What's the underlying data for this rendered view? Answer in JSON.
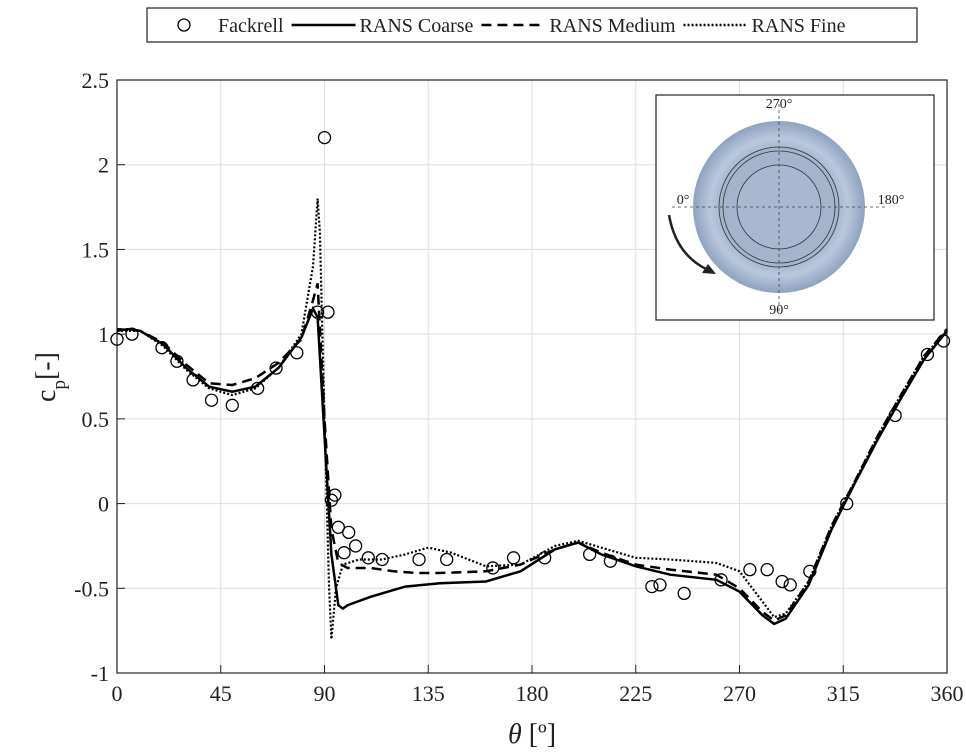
{
  "chart_data": {
    "type": "line",
    "xlabel": {
      "symbol": "θ",
      "unit": "[º]"
    },
    "ylabel": {
      "main": "c",
      "sub": "p",
      "unit": "[-]"
    },
    "xlim": [
      0,
      360
    ],
    "xticks": [
      0,
      45,
      90,
      135,
      180,
      225,
      270,
      315,
      360
    ],
    "ylim": [
      -1,
      2.5
    ],
    "yticks": [
      -1,
      -0.5,
      0,
      0.5,
      1,
      1.5,
      2,
      2.5
    ],
    "grid": true,
    "legend": "top",
    "inset_labels": [
      "270°",
      "0°",
      "180°",
      "90°"
    ],
    "series": [
      {
        "name": "Fackrell",
        "style": "circle",
        "color": "#000000",
        "x": [
          0,
          6.5,
          19.5,
          26,
          33,
          41,
          50,
          61,
          69,
          78,
          87,
          91.5,
          90,
          93,
          94.5,
          96,
          98.5,
          100.5,
          103.5,
          109,
          115,
          131,
          143,
          163,
          172,
          185.5,
          205,
          214,
          232,
          235.5,
          246,
          262,
          274.5,
          282,
          288.5,
          292,
          300.5,
          316.5,
          337.5,
          351.5,
          358.5
        ],
        "values": [
          0.97,
          1.0,
          0.92,
          0.84,
          0.73,
          0.61,
          0.58,
          0.68,
          0.8,
          0.89,
          1.13,
          1.13,
          2.16,
          0.02,
          0.05,
          -0.14,
          -0.29,
          -0.17,
          -0.25,
          -0.32,
          -0.33,
          -0.33,
          -0.33,
          -0.38,
          -0.32,
          -0.32,
          -0.3,
          -0.34,
          -0.49,
          -0.48,
          -0.53,
          -0.45,
          -0.39,
          -0.39,
          -0.46,
          -0.48,
          -0.4,
          0,
          0.52,
          0.88,
          0.96
        ]
      },
      {
        "name": "RANS Coarse",
        "style": "solid",
        "color": "#000000",
        "x": [
          0,
          5,
          10,
          20,
          30,
          40,
          50,
          60,
          70,
          80,
          85,
          87,
          90,
          93,
          96,
          98,
          100,
          110,
          125,
          140,
          160,
          175,
          190,
          200,
          210,
          225,
          240,
          260,
          270,
          280,
          285,
          290,
          300,
          310,
          320,
          330,
          340,
          350,
          360
        ],
        "values": [
          1.02,
          1.03,
          1.02,
          0.94,
          0.8,
          0.69,
          0.66,
          0.69,
          0.8,
          0.98,
          1.15,
          1.1,
          0.4,
          -0.3,
          -0.6,
          -0.62,
          -0.6,
          -0.55,
          -0.49,
          -0.47,
          -0.46,
          -0.4,
          -0.27,
          -0.23,
          -0.3,
          -0.37,
          -0.42,
          -0.45,
          -0.52,
          -0.66,
          -0.71,
          -0.68,
          -0.48,
          -0.15,
          0.12,
          0.38,
          0.62,
          0.85,
          1.02
        ]
      },
      {
        "name": "RANS Medium",
        "style": "dashed",
        "color": "#000000",
        "x": [
          0,
          10,
          20,
          30,
          40,
          50,
          60,
          70,
          80,
          85,
          87,
          90,
          93,
          96,
          100,
          110,
          120,
          130,
          140,
          160,
          175,
          190,
          200,
          210,
          225,
          240,
          260,
          270,
          280,
          285,
          290,
          300,
          310,
          320,
          330,
          340,
          350,
          360
        ],
        "values": [
          1.03,
          1.02,
          0.95,
          0.82,
          0.71,
          0.7,
          0.74,
          0.83,
          0.97,
          1.2,
          1.3,
          0.5,
          -0.15,
          -0.35,
          -0.38,
          -0.38,
          -0.4,
          -0.41,
          -0.41,
          -0.4,
          -0.36,
          -0.27,
          -0.23,
          -0.29,
          -0.36,
          -0.39,
          -0.42,
          -0.5,
          -0.64,
          -0.69,
          -0.66,
          -0.46,
          -0.13,
          0.13,
          0.4,
          0.64,
          0.87,
          1.03
        ]
      },
      {
        "name": "RANS Fine",
        "style": "dotted",
        "color": "#000000",
        "x": [
          0,
          10,
          20,
          30,
          40,
          50,
          60,
          70,
          80,
          85,
          87,
          88,
          90,
          92,
          93,
          95,
          98,
          105,
          115,
          125,
          135,
          145,
          160,
          175,
          190,
          200,
          210,
          225,
          240,
          260,
          270,
          280,
          285,
          290,
          300,
          310,
          320,
          330,
          340,
          350,
          360
        ],
        "values": [
          1.02,
          1.02,
          0.93,
          0.79,
          0.68,
          0.64,
          0.68,
          0.8,
          1.0,
          1.4,
          1.8,
          1.6,
          0.5,
          -0.5,
          -0.8,
          -0.5,
          -0.36,
          -0.33,
          -0.33,
          -0.3,
          -0.26,
          -0.29,
          -0.37,
          -0.36,
          -0.25,
          -0.22,
          -0.26,
          -0.32,
          -0.33,
          -0.35,
          -0.4,
          -0.58,
          -0.67,
          -0.65,
          -0.46,
          -0.13,
          0.13,
          0.4,
          0.64,
          0.87,
          1.02
        ]
      }
    ]
  }
}
